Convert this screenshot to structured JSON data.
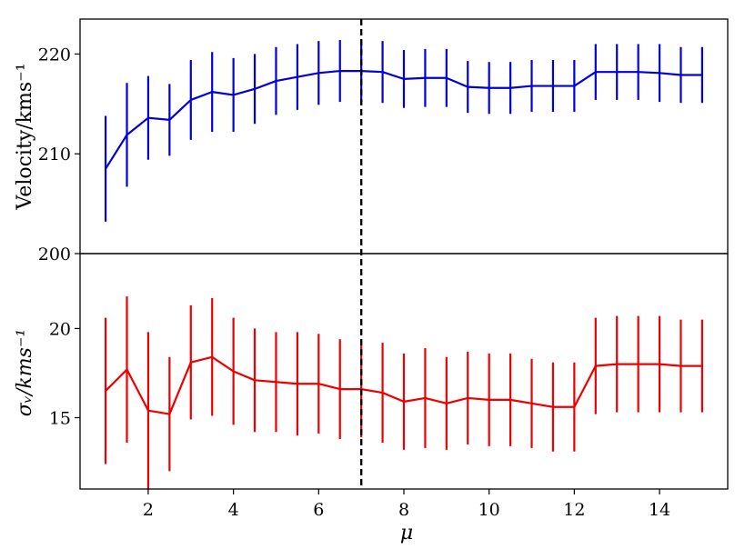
{
  "chart_data": [
    {
      "type": "line",
      "panel": "top",
      "xlabel": "",
      "ylabel": "Velocity/kms⁻¹",
      "xlim": [
        0.4,
        15.6
      ],
      "ylim": [
        200,
        223.5
      ],
      "yticks": [
        200,
        210,
        220
      ],
      "grid": false,
      "color": "#0000dd",
      "series": [
        {
          "x": [
            1,
            1.5,
            2,
            2.5,
            3,
            3.5,
            4,
            4.5,
            5,
            5.5,
            6,
            6.5,
            7,
            7.5,
            8,
            8.5,
            9,
            9.5,
            10,
            10.5,
            11,
            11.5,
            12,
            12.5,
            13,
            13.5,
            14,
            14.5,
            15
          ],
          "y": [
            208.5,
            211.9,
            213.6,
            213.4,
            215.4,
            216.2,
            215.9,
            216.5,
            217.3,
            217.7,
            218.1,
            218.3,
            218.3,
            218.2,
            217.5,
            217.6,
            217.6,
            216.7,
            216.6,
            216.6,
            216.8,
            216.8,
            216.8,
            218.2,
            218.2,
            218.2,
            218.1,
            217.9,
            217.9
          ],
          "yerr": [
            5.3,
            5.2,
            4.2,
            3.6,
            4.0,
            4.0,
            3.7,
            3.5,
            3.4,
            3.3,
            3.2,
            3.1,
            3.1,
            3.1,
            2.9,
            2.9,
            2.9,
            2.6,
            2.6,
            2.6,
            2.6,
            2.6,
            2.6,
            2.8,
            2.8,
            2.8,
            2.9,
            2.8,
            2.8
          ]
        }
      ]
    },
    {
      "type": "line",
      "panel": "bottom",
      "xlabel": "μ",
      "ylabel": "σᵥ/kms⁻¹",
      "xlim": [
        0.4,
        15.6
      ],
      "ylim": [
        11,
        24.2
      ],
      "xticks": [
        2,
        4,
        6,
        8,
        10,
        12,
        14
      ],
      "yticks": [
        15,
        20
      ],
      "grid": false,
      "color": "#ee0000",
      "series": [
        {
          "x": [
            1,
            1.5,
            2,
            2.5,
            3,
            3.5,
            4,
            4.5,
            5,
            5.5,
            6,
            6.5,
            7,
            7.5,
            8,
            8.5,
            9,
            9.5,
            10,
            10.5,
            11,
            11.5,
            12,
            12.5,
            13,
            13.5,
            14,
            14.5,
            15
          ],
          "y": [
            16.5,
            17.7,
            15.4,
            15.2,
            18.1,
            18.4,
            17.6,
            17.1,
            17.0,
            16.9,
            16.9,
            16.6,
            16.6,
            16.4,
            15.9,
            16.1,
            15.8,
            16.1,
            16.0,
            16.0,
            15.8,
            15.6,
            15.6,
            17.9,
            18.0,
            18.0,
            18.0,
            17.9,
            17.9
          ],
          "yerr": [
            4.1,
            4.1,
            4.4,
            3.2,
            3.2,
            3.3,
            3.0,
            2.9,
            2.8,
            2.9,
            2.8,
            2.8,
            2.7,
            2.8,
            2.7,
            2.8,
            2.6,
            2.6,
            2.6,
            2.6,
            2.5,
            2.5,
            2.5,
            2.7,
            2.7,
            2.7,
            2.7,
            2.6,
            2.6
          ]
        }
      ]
    }
  ],
  "marker_line": {
    "x": 7,
    "style": "dashed",
    "color": "#000000"
  },
  "labels": {
    "x_axis": "μ",
    "top_y_axis": "Velocity/kms⁻¹",
    "bottom_y_axis": "σᵥ/kms⁻¹"
  }
}
